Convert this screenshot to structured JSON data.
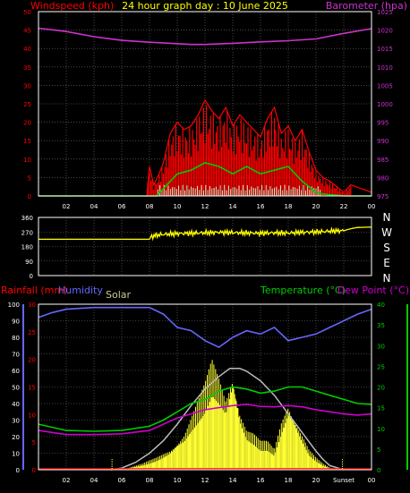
{
  "colors": {
    "wind_avg": "#00cc00",
    "wind_gust": "#ff0000",
    "wind_light": "#c8f0c8",
    "barometer": "#cc33cc",
    "direction": "#ffff00",
    "humidity": "#6666ff",
    "temperature": "#00cc00",
    "dewpoint": "#cc00cc",
    "solar": "#ffff33",
    "solar_theoretical": "#bbbbbb",
    "rainfall": "#ff0000",
    "grid": "#777777",
    "axis": "#ffffff"
  },
  "chart_data": [
    {
      "type": "line",
      "id": "wind-barometer",
      "title": "24 hour graph day : 10 June 2025",
      "ylabel": "Windspeed (kph)",
      "y2label": "Barometer (hpa)",
      "x_ticks": [
        "02",
        "04",
        "06",
        "08",
        "10",
        "12",
        "14",
        "16",
        "18",
        "20",
        "22",
        "00"
      ],
      "ylim": [
        0,
        50
      ],
      "y_ticks": [
        "0",
        "5",
        "10",
        "15",
        "20",
        "25",
        "30",
        "35",
        "40",
        "45",
        "50"
      ],
      "y2lim": [
        975,
        1025
      ],
      "y2_ticks": [
        "975",
        "980",
        "985",
        "990",
        "995",
        "1000",
        "1005",
        "1010",
        "1015",
        "1020",
        "1025"
      ],
      "grid": true,
      "series": [
        {
          "name": "Barometer",
          "axis": "right",
          "x": [
            0,
            2,
            4,
            6,
            8,
            10,
            11,
            12,
            14,
            16,
            18,
            20,
            22,
            24
          ],
          "values": [
            1020.5,
            1019.6,
            1018.2,
            1017.2,
            1016.7,
            1016.3,
            1016.1,
            1016.1,
            1016.4,
            1016.8,
            1017.1,
            1017.6,
            1019.1,
            1020.4
          ]
        },
        {
          "name": "Gust",
          "axis": "left",
          "x": [
            0,
            7.8,
            8.0,
            8.3,
            8.7,
            9.0,
            9.5,
            10,
            10.5,
            11,
            11.5,
            12,
            12.5,
            13,
            13.5,
            14,
            14.5,
            15,
            15.5,
            16,
            16.5,
            17,
            17.5,
            18,
            18.5,
            19,
            19.5,
            20,
            20.5,
            21,
            22,
            22.5,
            24
          ],
          "values": [
            0,
            0,
            8,
            3,
            6,
            9,
            17,
            20,
            18,
            19,
            22,
            26,
            23,
            21,
            24,
            19,
            22,
            20,
            18,
            16,
            21,
            24,
            17,
            19,
            15,
            18,
            12,
            7,
            5,
            4,
            1,
            3,
            1
          ]
        },
        {
          "name": "Average",
          "axis": "left",
          "x": [
            0,
            8.5,
            9,
            10,
            11,
            12,
            13,
            14,
            15,
            16,
            17,
            18,
            19,
            20,
            20.5,
            22,
            24
          ],
          "values": [
            0,
            0,
            2,
            6,
            7,
            9,
            8,
            6,
            8,
            6,
            7,
            8,
            4,
            1,
            0.5,
            0,
            0
          ]
        }
      ]
    },
    {
      "type": "scatter",
      "id": "wind-direction",
      "ylabel": "",
      "ylim": [
        0,
        360
      ],
      "y_ticks": [
        "0",
        "90",
        "180",
        "270",
        "360"
      ],
      "compass": [
        "N",
        "W",
        "S",
        "E",
        "N"
      ],
      "grid": true,
      "series": [
        {
          "name": "Direction",
          "x": [
            0,
            8.0,
            8.1,
            8.5,
            9,
            10,
            11,
            12,
            13,
            14,
            15,
            16,
            17,
            18,
            19,
            20,
            21,
            22,
            22.5,
            23,
            24
          ],
          "values": [
            225,
            225,
            240,
            250,
            255,
            260,
            262,
            265,
            268,
            266,
            264,
            262,
            265,
            263,
            268,
            270,
            275,
            278,
            290,
            298,
            300
          ]
        }
      ]
    },
    {
      "type": "line",
      "id": "humidity-temperature",
      "ylabel": "Humidity",
      "labels": {
        "rainfall": "Rainfall (mm)",
        "humidity": "Humidity",
        "solar": "Solar",
        "temperature": "Temperature (°C)",
        "dewpoint": "Dew Point (°C)",
        "sunset": "Sunset"
      },
      "x_ticks": [
        "02",
        "04",
        "06",
        "08",
        "10",
        "12",
        "14",
        "16",
        "18",
        "20",
        "Sunset",
        "00"
      ],
      "ylim": [
        0,
        100
      ],
      "y_ticks": [
        "0",
        "10",
        "20",
        "30",
        "40",
        "50",
        "60",
        "70",
        "80",
        "90",
        "100"
      ],
      "rain_ticks": [
        "0",
        "5",
        "10",
        "15",
        "20",
        "25",
        "30"
      ],
      "y2lim": [
        0,
        40
      ],
      "y2_ticks": [
        "0",
        "5",
        "10",
        "15",
        "20",
        "25",
        "30",
        "35",
        "40"
      ],
      "grid": true,
      "series": [
        {
          "name": "Humidity",
          "axis": "left",
          "x": [
            0,
            1,
            2,
            4,
            6,
            8,
            9,
            10,
            11,
            12,
            13,
            14,
            15,
            16,
            17,
            18,
            19,
            20,
            21,
            22,
            23,
            24
          ],
          "values": [
            92,
            95,
            97,
            98,
            98,
            98,
            94,
            86,
            84,
            78,
            74,
            80,
            84,
            82,
            86,
            78,
            80,
            82,
            86,
            90,
            94,
            97
          ]
        },
        {
          "name": "Temperature",
          "axis": "right",
          "x": [
            0,
            2,
            4,
            6,
            8,
            9,
            10,
            11,
            12,
            13,
            14,
            15,
            16,
            17,
            18,
            19,
            20,
            21,
            22,
            23,
            24
          ],
          "values": [
            11,
            9.5,
            9.3,
            9.5,
            10.5,
            12,
            14,
            16,
            17,
            19,
            20,
            19.5,
            18.5,
            19,
            20,
            20,
            19,
            18,
            17,
            16,
            15.8
          ]
        },
        {
          "name": "Dew Point",
          "axis": "right",
          "x": [
            0,
            2,
            4,
            6,
            8,
            9,
            10,
            11,
            12,
            13,
            14,
            15,
            16,
            17,
            18,
            19,
            20,
            21,
            22,
            23,
            24
          ],
          "values": [
            9.5,
            8.5,
            8.5,
            8.7,
            9.5,
            11,
            12.5,
            13.5,
            14.5,
            15,
            15.5,
            15.8,
            15.3,
            15.2,
            15.5,
            15.2,
            14.5,
            14,
            13.5,
            13.2,
            13.5
          ]
        },
        {
          "name": "Solar",
          "axis": "right",
          "type": "area",
          "x": [
            0,
            5.5,
            6.5,
            7.5,
            8.5,
            9.5,
            10.5,
            11.5,
            12,
            12.5,
            13,
            13.5,
            14,
            14.5,
            15,
            15.5,
            16,
            16.5,
            17,
            17.5,
            18,
            18.5,
            19,
            19.5,
            20,
            20.5,
            21,
            22,
            24
          ],
          "values": [
            0,
            0,
            0.5,
            1.5,
            3,
            5,
            9,
            17,
            21,
            27,
            23,
            18,
            25,
            15,
            10,
            9,
            7,
            7,
            5,
            12,
            17,
            13,
            9,
            5,
            3,
            1.5,
            0.5,
            0,
            0
          ]
        },
        {
          "name": "Solar theoretical",
          "axis": "right",
          "x": [
            5.2,
            6,
            7,
            8,
            9,
            10,
            11,
            12,
            13,
            13.8,
            14.5,
            15,
            16,
            17,
            18,
            19,
            20,
            20.5,
            21,
            22
          ],
          "values": [
            0,
            0.4,
            1.8,
            4,
            7,
            11,
            15.5,
            19.5,
            22.5,
            24.5,
            24.5,
            23.8,
            21.5,
            18,
            13.5,
            9,
            4.5,
            2.5,
            1,
            0
          ]
        }
      ]
    }
  ]
}
